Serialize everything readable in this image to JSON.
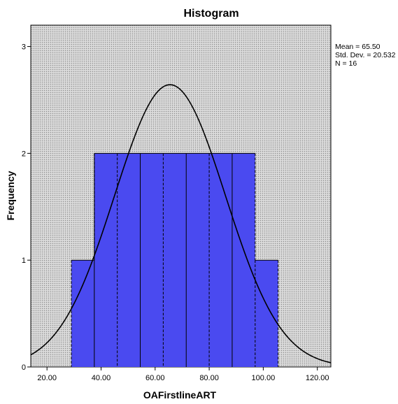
{
  "chart_data": {
    "type": "bar",
    "title": "Histogram",
    "xlabel": "OAFirstlineART",
    "ylabel": "Frequency",
    "xlim": [
      14.0,
      125.0
    ],
    "ylim": [
      0,
      3.2
    ],
    "x_ticks": [
      20,
      40,
      60,
      80,
      100,
      120
    ],
    "x_tick_labels": [
      "20.00",
      "40.00",
      "60.00",
      "80.00",
      "100.00",
      "120.00"
    ],
    "y_ticks": [
      0,
      1,
      2,
      3
    ],
    "y_tick_labels": [
      "0",
      "1",
      "2",
      "3"
    ],
    "bin_width": 8.5,
    "bins": [
      {
        "x0": 29.0,
        "x1": 37.5,
        "count": 1
      },
      {
        "x0": 37.5,
        "x1": 46.0,
        "count": 2
      },
      {
        "x0": 46.0,
        "x1": 54.5,
        "count": 2
      },
      {
        "x0": 54.5,
        "x1": 63.0,
        "count": 2
      },
      {
        "x0": 63.0,
        "x1": 71.5,
        "count": 2
      },
      {
        "x0": 71.5,
        "x1": 80.0,
        "count": 2
      },
      {
        "x0": 80.0,
        "x1": 88.5,
        "count": 2
      },
      {
        "x0": 88.5,
        "x1": 97.0,
        "count": 2
      },
      {
        "x0": 97.0,
        "x1": 105.5,
        "count": 1
      }
    ],
    "normal_curve": {
      "mean": 65.5,
      "sd": 20.532,
      "n": 16
    },
    "stats_text": [
      "Mean = 65.50",
      "Std. Dev. = 20.532",
      "N = 16"
    ],
    "colors": {
      "bar_fill": "#4a4af0",
      "bar_edge": "#000000",
      "plot_bg": "#d9d9d9",
      "curve": "#000000"
    },
    "grid": false,
    "legend": "none"
  }
}
